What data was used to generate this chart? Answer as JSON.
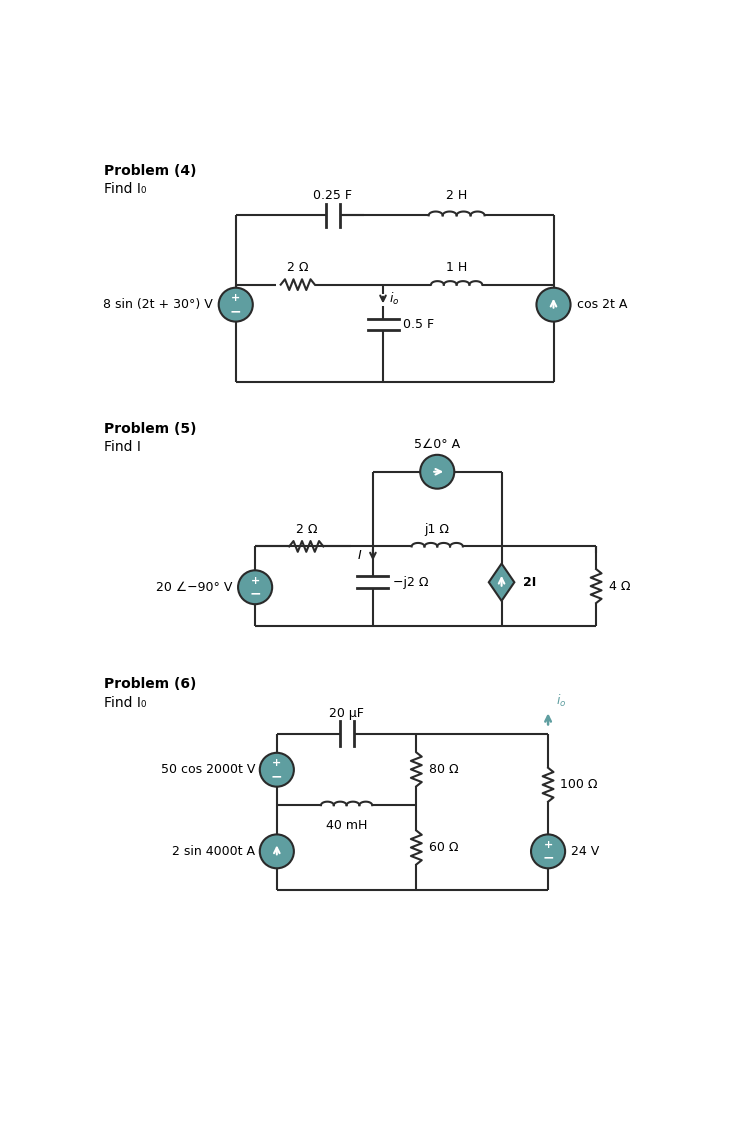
{
  "bg_color": "#ffffff",
  "source_color": "#5f9ea0",
  "line_color": "#2a2a2a",
  "text_color": "#000000",
  "prob4": {
    "title": "Problem (4)",
    "subtitle": "Find I₀",
    "vs_label": "8 sin (2t + 30°) V",
    "cs_label": "cos 2t A",
    "cap_top": "0.25 F",
    "ind_top": "2 H",
    "res_mid": "2 Ω",
    "ind_mid": "1 H",
    "cap_bot": "0.5 F"
  },
  "prob5": {
    "title": "Problem (5)",
    "subtitle": "Find I",
    "vs_label": "20 ∠−90° V",
    "cs_label": "5∠0° A",
    "res1": "2 Ω",
    "ind1": "j1 Ω",
    "cap1": "−j2 Ω",
    "dep_cs": "2I",
    "res2": "4 Ω"
  },
  "prob6": {
    "title": "Problem (6)",
    "subtitle": "Find I₀",
    "vs1_label": "50 cos 2000t V",
    "cs_label": "2 sin 4000t A",
    "vs2_label": "24 V",
    "cap_label": "20 μF",
    "ind_label": "40 mH",
    "res1_label": "80 Ω",
    "res2_label": "60 Ω",
    "res3_label": "100 Ω"
  }
}
